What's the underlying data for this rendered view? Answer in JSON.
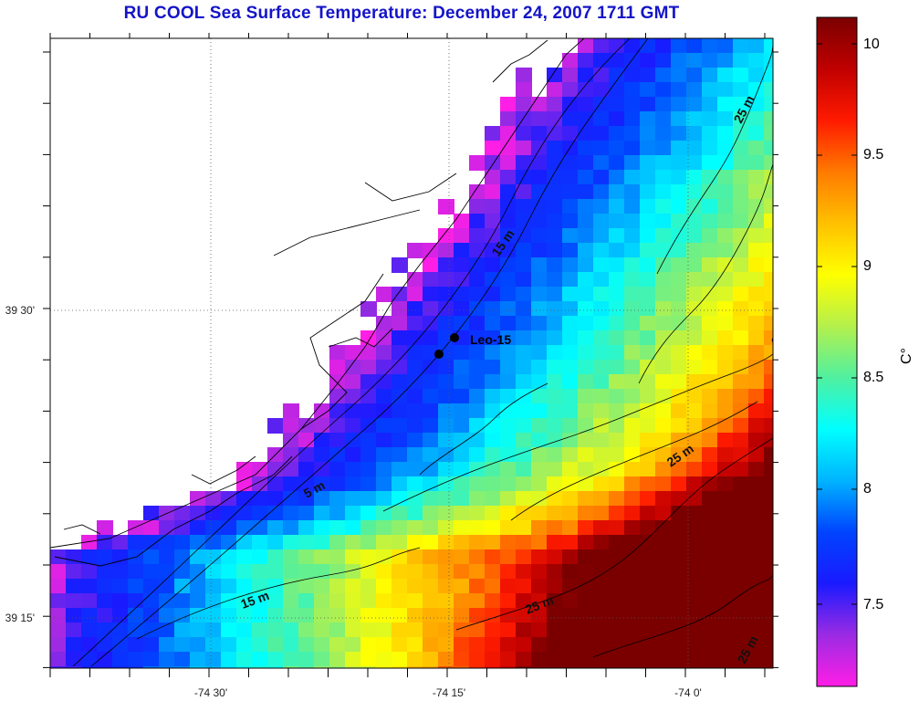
{
  "title": "RU COOL  Sea Surface Temperature:  December 24, 2007 1711 GMT",
  "axes": {
    "x_tick_labels": [
      "-74 30'",
      "-74 15'",
      "-74 0'"
    ],
    "y_tick_labels": [
      "39 30'",
      "39 15'"
    ]
  },
  "colorbar": {
    "label": "C°",
    "tick_labels": [
      "7.5",
      "8",
      "8.5",
      "9",
      "9.5",
      "10"
    ],
    "range": [
      7.1,
      10.1
    ],
    "stops": [
      "#ff1ee6",
      "#9b2be3",
      "#1a1aff",
      "#0044ff",
      "#00b4ff",
      "#00ffff",
      "#50f0a0",
      "#b4f04c",
      "#ffff00",
      "#ffc000",
      "#ff7a00",
      "#ff1a00",
      "#c00000",
      "#7a0000"
    ]
  },
  "isobath_labels": [
    "15 m",
    "5 m",
    "15 m",
    "25 m",
    "25 m",
    "25 m",
    "25 m"
  ],
  "station": {
    "label": "Leo-15"
  }
}
